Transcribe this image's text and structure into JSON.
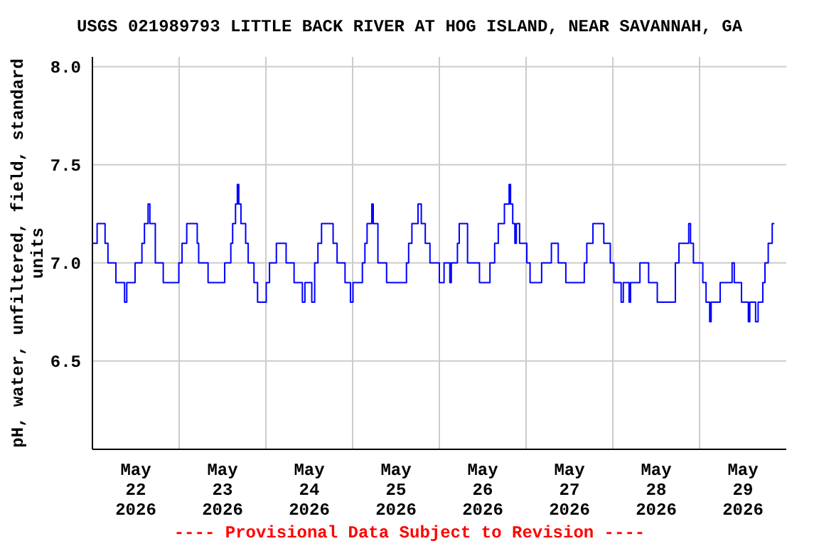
{
  "chart_data": {
    "type": "step",
    "title": "USGS 021989793 LITTLE BACK RIVER AT HOG ISLAND, NEAR SAVANNAH, GA",
    "ylabel": "pH, water, unfiltered, field, standard units",
    "annotations": [
      "---- Provisional Data Subject to Revision ----"
    ],
    "x": [
      "2026-05-22T00:00",
      "2026-05-22T01:18",
      "2026-05-22T03:30",
      "2026-05-22T04:18",
      "2026-05-22T06:30",
      "2026-05-22T08:54",
      "2026-05-22T09:30",
      "2026-05-22T11:48",
      "2026-05-22T13:42",
      "2026-05-22T14:24",
      "2026-05-22T15:24",
      "2026-05-22T15:54",
      "2026-05-22T17:24",
      "2026-05-22T19:36",
      "2026-05-22T23:54",
      "2026-05-23T00:48",
      "2026-05-23T02:06",
      "2026-05-23T05:00",
      "2026-05-23T05:24",
      "2026-05-23T08:00",
      "2026-05-23T12:36",
      "2026-05-23T14:18",
      "2026-05-23T14:48",
      "2026-05-23T15:36",
      "2026-05-23T16:06",
      "2026-05-23T16:30",
      "2026-05-23T17:06",
      "2026-05-23T18:24",
      "2026-05-23T19:06",
      "2026-05-23T20:42",
      "2026-05-23T21:42",
      "2026-05-24T00:06",
      "2026-05-24T01:00",
      "2026-05-24T02:54",
      "2026-05-24T05:36",
      "2026-05-24T07:48",
      "2026-05-24T10:06",
      "2026-05-24T10:48",
      "2026-05-24T12:42",
      "2026-05-24T13:30",
      "2026-05-24T14:24",
      "2026-05-24T15:24",
      "2026-05-24T18:36",
      "2026-05-24T19:42",
      "2026-05-24T21:54",
      "2026-05-24T23:24",
      "2026-05-25T00:06",
      "2026-05-25T02:42",
      "2026-05-25T03:24",
      "2026-05-25T04:00",
      "2026-05-25T05:18",
      "2026-05-25T05:42",
      "2026-05-25T07:00",
      "2026-05-25T09:24",
      "2026-05-25T14:54",
      "2026-05-25T15:30",
      "2026-05-25T16:24",
      "2026-05-25T18:06",
      "2026-05-25T19:00",
      "2026-05-25T20:06",
      "2026-05-25T21:24",
      "2026-05-26T00:00",
      "2026-05-26T01:18",
      "2026-05-26T02:54",
      "2026-05-26T03:18",
      "2026-05-26T05:00",
      "2026-05-26T05:30",
      "2026-05-26T07:48",
      "2026-05-26T11:06",
      "2026-05-26T14:00",
      "2026-05-26T15:18",
      "2026-05-26T16:18",
      "2026-05-26T18:00",
      "2026-05-26T19:18",
      "2026-05-26T19:42",
      "2026-05-26T20:18",
      "2026-05-26T20:54",
      "2026-05-26T21:18",
      "2026-05-26T22:12",
      "2026-05-27T00:12",
      "2026-05-27T01:06",
      "2026-05-27T04:18",
      "2026-05-27T07:00",
      "2026-05-27T08:54",
      "2026-05-27T11:00",
      "2026-05-27T16:06",
      "2026-05-27T16:48",
      "2026-05-27T18:30",
      "2026-05-27T21:30",
      "2026-05-27T23:18",
      "2026-05-28T00:18",
      "2026-05-28T02:18",
      "2026-05-28T02:54",
      "2026-05-28T04:30",
      "2026-05-28T04:54",
      "2026-05-28T07:30",
      "2026-05-28T09:54",
      "2026-05-28T12:18",
      "2026-05-28T17:18",
      "2026-05-28T18:18",
      "2026-05-28T21:00",
      "2026-05-28T21:30",
      "2026-05-28T22:18",
      "2026-05-29T00:54",
      "2026-05-29T01:48",
      "2026-05-29T02:48",
      "2026-05-29T03:12",
      "2026-05-29T05:42",
      "2026-05-29T09:00",
      "2026-05-29T09:36",
      "2026-05-29T11:36",
      "2026-05-29T13:30",
      "2026-05-29T13:54",
      "2026-05-29T15:30",
      "2026-05-29T16:12",
      "2026-05-29T17:30",
      "2026-05-29T18:06",
      "2026-05-29T19:00",
      "2026-05-29T20:06",
      "2026-05-29T20:42"
    ],
    "series": [
      {
        "color": "#0000ff",
        "values": [
          7.1,
          7.2,
          7.1,
          7.0,
          6.9,
          6.8,
          6.9,
          7.0,
          7.1,
          7.2,
          7.3,
          7.2,
          7.0,
          6.9,
          7.0,
          7.1,
          7.2,
          7.1,
          7.0,
          6.9,
          7.0,
          7.1,
          7.2,
          7.3,
          7.4,
          7.3,
          7.2,
          7.1,
          7.0,
          6.9,
          6.8,
          6.9,
          7.0,
          7.1,
          7.0,
          6.9,
          6.8,
          6.9,
          6.8,
          7.0,
          7.1,
          7.2,
          7.1,
          7.0,
          6.9,
          6.8,
          6.9,
          7.0,
          7.1,
          7.2,
          7.3,
          7.2,
          7.0,
          6.9,
          7.0,
          7.1,
          7.2,
          7.3,
          7.2,
          7.1,
          7.0,
          6.9,
          7.0,
          6.9,
          7.0,
          7.1,
          7.2,
          7.0,
          6.9,
          7.0,
          7.1,
          7.2,
          7.3,
          7.4,
          7.3,
          7.2,
          7.1,
          7.2,
          7.1,
          7.0,
          6.9,
          7.0,
          7.1,
          7.0,
          6.9,
          7.0,
          7.1,
          7.2,
          7.1,
          7.0,
          6.9,
          6.8,
          6.9,
          6.8,
          6.9,
          7.0,
          6.9,
          6.8,
          7.0,
          7.1,
          7.2,
          7.1,
          7.0,
          6.9,
          6.8,
          6.7,
          6.8,
          6.9,
          7.0,
          6.9,
          6.8,
          6.7,
          6.8,
          6.7,
          6.8,
          6.9,
          7.0,
          7.1,
          7.2,
          7.2
        ]
      }
    ],
    "xlim": [
      "2026-05-22T00:00",
      "2026-05-30T00:00"
    ],
    "xticks": [
      {
        "value": "2026-05-22T12:00",
        "label": "May\n22\n2026"
      },
      {
        "value": "2026-05-23T00:00",
        "label": null
      },
      {
        "value": "2026-05-23T12:00",
        "label": "May\n23\n2026"
      },
      {
        "value": "2026-05-24T00:00",
        "label": null
      },
      {
        "value": "2026-05-24T12:00",
        "label": "May\n24\n2026"
      },
      {
        "value": "2026-05-25T00:00",
        "label": null
      },
      {
        "value": "2026-05-25T12:00",
        "label": "May\n25\n2026"
      },
      {
        "value": "2026-05-26T00:00",
        "label": null
      },
      {
        "value": "2026-05-26T12:00",
        "label": "May\n26\n2026"
      },
      {
        "value": "2026-05-27T00:00",
        "label": null
      },
      {
        "value": "2026-05-27T12:00",
        "label": "May\n27\n2026"
      },
      {
        "value": "2026-05-28T00:00",
        "label": null
      },
      {
        "value": "2026-05-28T12:00",
        "label": "May\n28\n2026"
      },
      {
        "value": "2026-05-29T00:00",
        "label": null
      },
      {
        "value": "2026-05-29T12:00",
        "label": "May\n29\n2026"
      }
    ],
    "ylim": [
      6.05,
      8.05
    ],
    "yticks": [
      {
        "value": 6.5,
        "label": "6.5"
      },
      {
        "value": 7.0,
        "label": "7.0"
      },
      {
        "value": 7.5,
        "label": "7.5"
      },
      {
        "value": 8.0,
        "label": "8.0"
      }
    ],
    "grid": true,
    "marker": "none",
    "line_style": "solid"
  }
}
